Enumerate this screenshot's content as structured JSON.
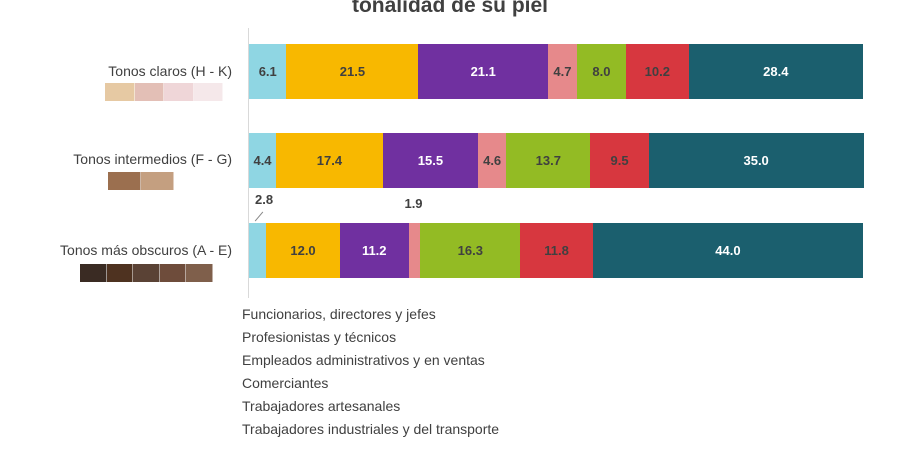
{
  "chart_data": {
    "type": "bar",
    "orientation": "horizontal",
    "stacked": true,
    "title": "tonalidad de su piel",
    "categories": [
      "Tonos claros (H - K)",
      "Tonos intermedios (F - G)",
      "Tonos más obscuros (A - E)"
    ],
    "category_swatches": [
      [
        "#e6c9a3",
        "#e3bfb6",
        "#efd6d8",
        "#f5e8ea"
      ],
      [
        "#9b6f4f",
        "#c49f80"
      ],
      [
        "#3a2b23",
        "#4e3220",
        "#5a4235",
        "#6e4c3b",
        "#7f5f4b"
      ]
    ],
    "series": [
      {
        "name": "Funcionarios, directores y jefes",
        "color": "#8fd6e3",
        "label_color": "#404040",
        "values": [
          6.1,
          4.4,
          2.8
        ]
      },
      {
        "name": "Profesionistas y técnicos",
        "color": "#f8b800",
        "label_color": "#404040",
        "values": [
          21.5,
          17.4,
          12.0
        ]
      },
      {
        "name": "Empleados administrativos y en ventas",
        "color": "#7030a0",
        "label_color": "#ffffff",
        "values": [
          21.1,
          15.5,
          11.2
        ]
      },
      {
        "name": "Comerciantes",
        "color": "#e6898b",
        "label_color": "#404040",
        "values": [
          4.7,
          4.6,
          1.9
        ]
      },
      {
        "name": "Trabajadores artesanales",
        "color": "#93bb24",
        "label_color": "#404040",
        "values": [
          8.0,
          13.7,
          16.3
        ]
      },
      {
        "name": "Trabajadores industriales y del transporte",
        "color": "#d7373f",
        "label_color": "#404040",
        "values": [
          10.2,
          9.5,
          11.8
        ]
      },
      {
        "name": "",
        "color": "#1b5f6e",
        "label_color": "#ffffff",
        "values": [
          28.4,
          35.0,
          44.0
        ]
      }
    ],
    "xlim": [
      0,
      100
    ],
    "legend": "bottom",
    "grid": false
  }
}
